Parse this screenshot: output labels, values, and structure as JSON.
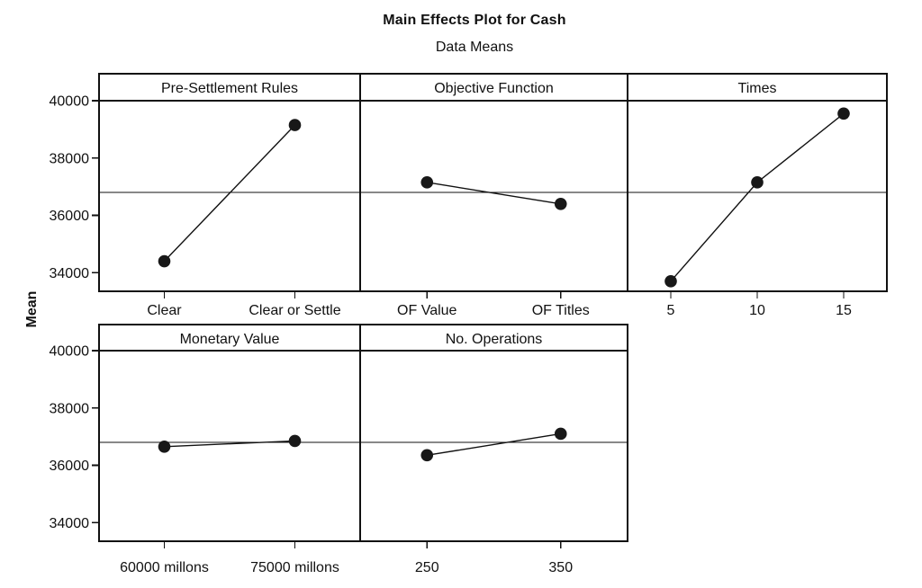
{
  "title": "Main Effects Plot for Cash",
  "subtitle": "Data Means",
  "ylabel": "Mean",
  "colors": {
    "foreground": "#111111",
    "background": "#ffffff",
    "marker": "#181818"
  },
  "chart_data": {
    "type": "line",
    "title": "Main Effects Plot for Cash",
    "subtitle": "Data Means",
    "ylabel": "Mean",
    "ylim": [
      33350,
      40000
    ],
    "yticks": [
      34000,
      36000,
      38000,
      40000
    ],
    "reference_line": 36800,
    "grid": false,
    "legend": "none",
    "marker": "filled-circle",
    "layout": "five panels in two rows; each panel has a header band, shared y axis on left, category x axis below each row",
    "panels": [
      {
        "title": "Pre-Settlement Rules",
        "row": 0,
        "categories": [
          "Clear",
          "Clear or Settle"
        ],
        "values": [
          34400,
          39150
        ]
      },
      {
        "title": "Objective Function",
        "row": 0,
        "categories": [
          "OF Value",
          "OF Titles"
        ],
        "values": [
          37150,
          36400
        ]
      },
      {
        "title": "Times",
        "row": 0,
        "categories": [
          "5",
          "10",
          "15"
        ],
        "values": [
          33700,
          37150,
          39550
        ]
      },
      {
        "title": "Monetary Value",
        "row": 1,
        "categories": [
          "60000 millons",
          "75000 millons"
        ],
        "values": [
          36650,
          36850
        ]
      },
      {
        "title": "No. Operations",
        "row": 1,
        "categories": [
          "250",
          "350"
        ],
        "values": [
          36350,
          37100
        ]
      }
    ]
  }
}
